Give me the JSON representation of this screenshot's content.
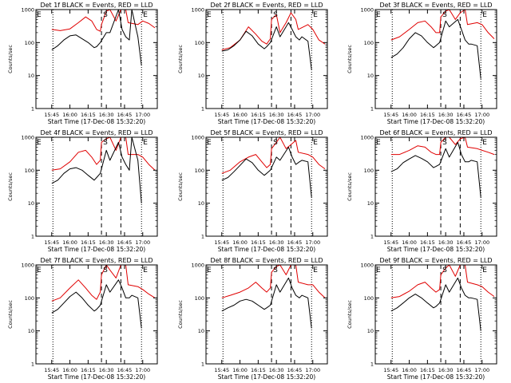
{
  "colors": {
    "events": "#000000",
    "lld": "#e00000",
    "background": "#ffffff"
  },
  "shared": {
    "xlabel": "Start Time (17-Dec-08 15:32:20)",
    "ylabel": "Counts/sec",
    "x_ticks": [
      "15:45",
      "16:00",
      "16:15",
      "16:30",
      "16:45",
      "17:00"
    ],
    "y_ticks": [
      "1",
      "10",
      "100",
      "1000"
    ],
    "markers": {
      "s": "S",
      "e": "E"
    }
  },
  "chart_data": [
    {
      "type": "line",
      "title": "Det 1f BLACK = Events, RED = LLD",
      "xlim": [
        "15:32",
        "17:12"
      ],
      "ylim": [
        1,
        1000
      ],
      "yscale": "log",
      "grid": false,
      "lines": {
        "dotted": [
          "15:46",
          "16:59"
        ],
        "dashed": [
          "16:26",
          "16:42"
        ]
      },
      "series": [
        {
          "x": [
            "15:45",
            "15:52",
            "16:00",
            "16:07",
            "16:13",
            "16:18",
            "16:22",
            "16:25",
            "16:26",
            "16:30",
            "16:33",
            "16:38",
            "16:42",
            "16:46",
            "16:48",
            "16:56",
            "17:00",
            "17:05",
            "17:10"
          ],
          "values": [
            250,
            230,
            260,
            400,
            600,
            450,
            250,
            220,
            350,
            900,
            1000,
            450,
            1000,
            1000,
            400,
            350,
            450,
            380,
            280
          ]
        },
        {
          "x": [
            "15:45",
            "15:50",
            "15:55",
            "16:00",
            "16:05",
            "16:10",
            "16:15",
            "16:20",
            "16:22",
            "16:25",
            "16:30",
            "16:33",
            "16:40",
            "16:43",
            "16:46",
            "16:49",
            "16:51",
            "16:56",
            "16:59"
          ],
          "values": [
            60,
            80,
            120,
            160,
            170,
            130,
            100,
            70,
            75,
            100,
            200,
            200,
            1000,
            250,
            150,
            120,
            1000,
            150,
            20
          ]
        }
      ]
    },
    {
      "type": "line",
      "title": "Det 2f BLACK = Events, RED = LLD",
      "xlim": [
        "15:32",
        "17:12"
      ],
      "ylim": [
        1,
        1000
      ],
      "yscale": "log",
      "grid": false,
      "lines": {
        "dotted": [
          "15:46",
          "16:59"
        ],
        "dashed": [
          "16:26",
          "16:42"
        ]
      },
      "series": [
        {
          "x": [
            "15:45",
            "15:52",
            "16:00",
            "16:07",
            "16:13",
            "16:18",
            "16:22",
            "16:25",
            "16:26",
            "16:30",
            "16:33",
            "16:38",
            "16:42",
            "16:46",
            "16:48",
            "16:56",
            "17:00",
            "17:05",
            "17:10"
          ],
          "values": [
            60,
            70,
            120,
            300,
            180,
            110,
            90,
            130,
            500,
            700,
            200,
            400,
            800,
            500,
            250,
            350,
            250,
            120,
            90
          ]
        },
        {
          "x": [
            "15:45",
            "15:50",
            "15:55",
            "16:00",
            "16:05",
            "16:10",
            "16:15",
            "16:20",
            "16:22",
            "16:25",
            "16:30",
            "16:33",
            "16:40",
            "16:43",
            "16:46",
            "16:49",
            "16:51",
            "16:56",
            "16:59"
          ],
          "values": [
            55,
            60,
            80,
            120,
            220,
            160,
            90,
            65,
            75,
            100,
            300,
            150,
            400,
            250,
            150,
            120,
            150,
            110,
            15
          ]
        }
      ]
    },
    {
      "type": "line",
      "title": "Det 3f BLACK = Events, RED = LLD",
      "xlim": [
        "15:32",
        "17:12"
      ],
      "ylim": [
        1,
        1000
      ],
      "yscale": "log",
      "grid": false,
      "lines": {
        "dotted": [
          "15:46",
          "16:59"
        ],
        "dashed": [
          "16:26",
          "16:42"
        ]
      },
      "series": [
        {
          "x": [
            "15:45",
            "15:52",
            "16:00",
            "16:07",
            "16:13",
            "16:18",
            "16:22",
            "16:25",
            "16:26",
            "16:30",
            "16:33",
            "16:38",
            "16:42",
            "16:46",
            "16:48",
            "16:56",
            "17:00",
            "17:05",
            "17:10"
          ],
          "values": [
            120,
            150,
            250,
            400,
            450,
            300,
            200,
            200,
            600,
            900,
            1000,
            500,
            800,
            1000,
            350,
            400,
            350,
            200,
            130
          ]
        },
        {
          "x": [
            "15:45",
            "15:50",
            "15:55",
            "16:00",
            "16:05",
            "16:10",
            "16:15",
            "16:20",
            "16:22",
            "16:25",
            "16:30",
            "16:33",
            "16:40",
            "16:43",
            "16:46",
            "16:49",
            "16:51",
            "16:56",
            "16:59"
          ],
          "values": [
            35,
            45,
            70,
            130,
            200,
            160,
            100,
            70,
            80,
            100,
            450,
            300,
            500,
            250,
            120,
            90,
            90,
            80,
            8
          ]
        }
      ]
    },
    {
      "type": "line",
      "title": "Det 4f BLACK = Events, RED = LLD",
      "xlim": [
        "15:32",
        "17:12"
      ],
      "ylim": [
        1,
        1000
      ],
      "yscale": "log",
      "grid": false,
      "lines": {
        "dotted": [
          "15:46",
          "16:59"
        ],
        "dashed": [
          "16:26",
          "16:42"
        ]
      },
      "series": [
        {
          "x": [
            "15:45",
            "15:52",
            "16:00",
            "16:07",
            "16:13",
            "16:18",
            "16:22",
            "16:25",
            "16:26",
            "16:30",
            "16:33",
            "16:38",
            "16:42",
            "16:46",
            "16:48",
            "16:56",
            "17:00",
            "17:05",
            "17:10"
          ],
          "values": [
            100,
            110,
            180,
            350,
            400,
            250,
            150,
            200,
            700,
            900,
            1000,
            400,
            1000,
            1000,
            300,
            300,
            250,
            150,
            100
          ]
        },
        {
          "x": [
            "15:45",
            "15:50",
            "15:55",
            "16:00",
            "16:05",
            "16:10",
            "16:15",
            "16:20",
            "16:22",
            "16:25",
            "16:30",
            "16:33",
            "16:40",
            "16:43",
            "16:46",
            "16:49",
            "16:51",
            "16:56",
            "16:59"
          ],
          "values": [
            40,
            50,
            80,
            110,
            120,
            100,
            70,
            50,
            60,
            80,
            400,
            200,
            700,
            250,
            150,
            100,
            1000,
            200,
            10
          ]
        }
      ]
    },
    {
      "type": "line",
      "title": "Det 5f BLACK = Events, RED = LLD",
      "xlim": [
        "15:32",
        "17:12"
      ],
      "ylim": [
        1,
        1000
      ],
      "yscale": "log",
      "grid": false,
      "lines": {
        "dotted": [
          "15:46",
          "16:59"
        ],
        "dashed": [
          "16:26",
          "16:42"
        ]
      },
      "series": [
        {
          "x": [
            "15:45",
            "15:52",
            "16:00",
            "16:07",
            "16:13",
            "16:18",
            "16:22",
            "16:25",
            "16:26",
            "16:30",
            "16:33",
            "16:38",
            "16:42",
            "16:46",
            "16:48",
            "16:56",
            "17:00",
            "17:05",
            "17:10"
          ],
          "values": [
            80,
            100,
            180,
            250,
            300,
            180,
            120,
            150,
            450,
            700,
            1000,
            450,
            600,
            800,
            350,
            300,
            250,
            150,
            110
          ]
        },
        {
          "x": [
            "15:45",
            "15:50",
            "15:55",
            "16:00",
            "16:05",
            "16:10",
            "16:15",
            "16:20",
            "16:22",
            "16:25",
            "16:30",
            "16:33",
            "16:40",
            "16:43",
            "16:46",
            "16:49",
            "16:51",
            "16:56",
            "16:59"
          ],
          "values": [
            50,
            60,
            90,
            140,
            220,
            170,
            100,
            70,
            80,
            100,
            250,
            200,
            500,
            250,
            150,
            180,
            200,
            180,
            15
          ]
        }
      ]
    },
    {
      "type": "line",
      "title": "Det 6f BLACK = Events, RED = LLD",
      "xlim": [
        "15:32",
        "17:12"
      ],
      "ylim": [
        1,
        1000
      ],
      "yscale": "log",
      "grid": false,
      "lines": {
        "dotted": [
          "15:46",
          "16:59"
        ],
        "dashed": [
          "16:26",
          "16:42"
        ]
      },
      "series": [
        {
          "x": [
            "15:45",
            "15:52",
            "16:00",
            "16:07",
            "16:13",
            "16:18",
            "16:22",
            "16:25",
            "16:26",
            "16:30",
            "16:33",
            "16:38",
            "16:42",
            "16:46",
            "16:48",
            "16:56",
            "17:00",
            "17:05",
            "17:10"
          ],
          "values": [
            300,
            300,
            400,
            550,
            500,
            350,
            300,
            300,
            700,
            1000,
            1000,
            600,
            900,
            1000,
            500,
            450,
            400,
            350,
            300
          ]
        },
        {
          "x": [
            "15:45",
            "15:50",
            "15:55",
            "16:00",
            "16:05",
            "16:10",
            "16:15",
            "16:20",
            "16:22",
            "16:25",
            "16:30",
            "16:33",
            "16:40",
            "16:43",
            "16:46",
            "16:49",
            "16:51",
            "16:56",
            "16:59"
          ],
          "values": [
            90,
            110,
            170,
            220,
            280,
            230,
            180,
            120,
            130,
            150,
            450,
            250,
            700,
            300,
            180,
            180,
            200,
            180,
            15
          ]
        }
      ]
    },
    {
      "type": "line",
      "title": "Det 7f BLACK = Events, RED = LLD",
      "xlim": [
        "15:32",
        "17:12"
      ],
      "ylim": [
        1,
        1000
      ],
      "yscale": "log",
      "grid": false,
      "lines": {
        "dotted": [
          "15:46",
          "16:59"
        ],
        "dashed": [
          "16:26",
          "16:42"
        ]
      },
      "series": [
        {
          "x": [
            "15:45",
            "15:52",
            "16:00",
            "16:07",
            "16:13",
            "16:18",
            "16:22",
            "16:25",
            "16:26",
            "16:30",
            "16:33",
            "16:38",
            "16:42",
            "16:46",
            "16:48",
            "16:56",
            "17:00",
            "17:05",
            "17:10"
          ],
          "values": [
            80,
            100,
            200,
            350,
            200,
            120,
            90,
            150,
            500,
            1000,
            700,
            400,
            1000,
            1000,
            250,
            220,
            180,
            130,
            100
          ]
        },
        {
          "x": [
            "15:45",
            "15:50",
            "15:55",
            "16:00",
            "16:05",
            "16:10",
            "16:15",
            "16:20",
            "16:22",
            "16:25",
            "16:30",
            "16:33",
            "16:40",
            "16:43",
            "16:46",
            "16:49",
            "16:51",
            "16:56",
            "16:59"
          ],
          "values": [
            35,
            45,
            70,
            110,
            150,
            100,
            60,
            40,
            45,
            60,
            250,
            150,
            350,
            200,
            100,
            100,
            120,
            100,
            12
          ]
        }
      ]
    },
    {
      "type": "line",
      "title": "Det 8f BLACK = Events, RED = LLD",
      "xlim": [
        "15:32",
        "17:12"
      ],
      "ylim": [
        1,
        1000
      ],
      "yscale": "log",
      "grid": false,
      "lines": {
        "dotted": [
          "15:46",
          "16:59"
        ],
        "dashed": [
          "16:26",
          "16:42"
        ]
      },
      "series": [
        {
          "x": [
            "15:45",
            "15:52",
            "16:00",
            "16:07",
            "16:13",
            "16:18",
            "16:22",
            "16:25",
            "16:26",
            "16:30",
            "16:33",
            "16:38",
            "16:42",
            "16:46",
            "16:48",
            "16:56",
            "17:00",
            "17:05",
            "17:10"
          ],
          "values": [
            100,
            120,
            150,
            200,
            300,
            200,
            150,
            200,
            600,
            900,
            1000,
            500,
            1000,
            1000,
            300,
            250,
            250,
            150,
            100
          ]
        },
        {
          "x": [
            "15:45",
            "15:50",
            "15:55",
            "16:00",
            "16:05",
            "16:10",
            "16:15",
            "16:20",
            "16:22",
            "16:25",
            "16:30",
            "16:33",
            "16:40",
            "16:43",
            "16:46",
            "16:49",
            "16:51",
            "16:56",
            "16:59"
          ],
          "values": [
            40,
            50,
            60,
            80,
            90,
            80,
            60,
            45,
            50,
            60,
            250,
            150,
            400,
            200,
            120,
            100,
            120,
            100,
            12
          ]
        }
      ]
    },
    {
      "type": "line",
      "title": "Det 9f BLACK = Events, RED = LLD",
      "xlim": [
        "15:32",
        "17:12"
      ],
      "ylim": [
        1,
        1000
      ],
      "yscale": "log",
      "grid": false,
      "lines": {
        "dotted": [
          "15:46",
          "16:59"
        ],
        "dashed": [
          "16:26",
          "16:42"
        ]
      },
      "series": [
        {
          "x": [
            "15:45",
            "15:52",
            "16:00",
            "16:07",
            "16:13",
            "16:18",
            "16:22",
            "16:25",
            "16:26",
            "16:30",
            "16:33",
            "16:38",
            "16:42",
            "16:46",
            "16:48",
            "16:56",
            "17:00",
            "17:05",
            "17:10"
          ],
          "values": [
            100,
            110,
            160,
            250,
            300,
            200,
            150,
            180,
            500,
            800,
            1000,
            450,
            1000,
            1000,
            300,
            250,
            220,
            150,
            110
          ]
        },
        {
          "x": [
            "15:45",
            "15:50",
            "15:55",
            "16:00",
            "16:05",
            "16:10",
            "16:15",
            "16:20",
            "16:22",
            "16:25",
            "16:30",
            "16:33",
            "16:40",
            "16:43",
            "16:46",
            "16:49",
            "16:51",
            "16:56",
            "16:59"
          ],
          "values": [
            40,
            50,
            70,
            100,
            130,
            100,
            70,
            50,
            55,
            70,
            250,
            150,
            400,
            200,
            120,
            100,
            100,
            90,
            10
          ]
        }
      ]
    }
  ]
}
